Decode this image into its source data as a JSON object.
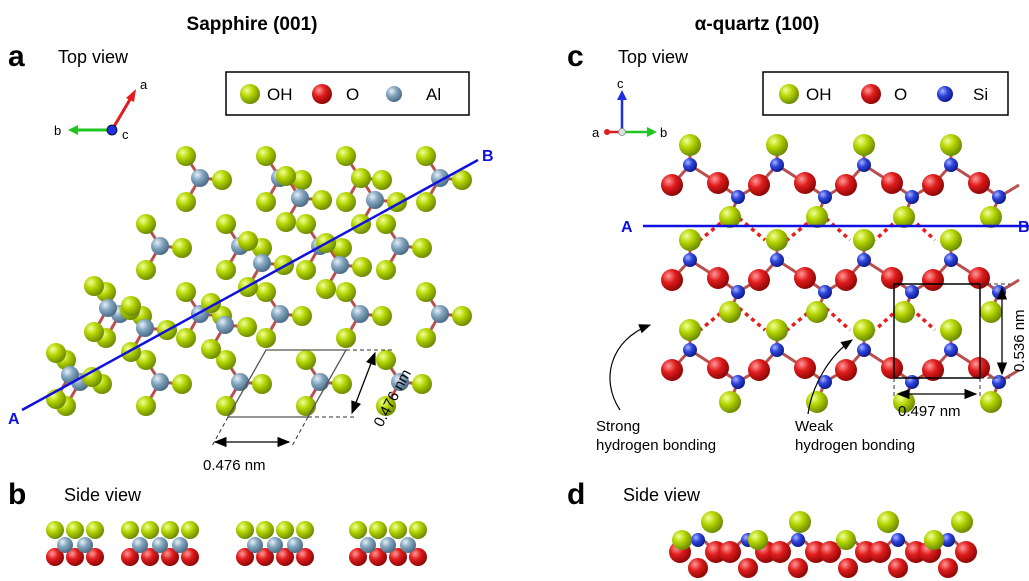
{
  "titles": {
    "left": "Sapphire (001)",
    "right": "α-quartz (100)"
  },
  "panels": {
    "a": "a",
    "b": "b",
    "c": "c",
    "d": "d"
  },
  "views": {
    "a": "Top view",
    "b": "Side view",
    "c": "Top view",
    "d": "Side view"
  },
  "legend_left": {
    "oh": "OH",
    "o": "O",
    "al": "Al"
  },
  "legend_right": {
    "oh": "OH",
    "o": "O",
    "si": "Si"
  },
  "axes_left": {
    "a": "a",
    "b": "b",
    "c": "c"
  },
  "axes_right": {
    "a": "a",
    "b": "b",
    "c": "c"
  },
  "lines": {
    "left_start": "A",
    "left_end": "B",
    "right_start": "A",
    "right_end": "B"
  },
  "dims": {
    "sapphire_1": "0.476 nm",
    "sapphire_2": "0.476 nm",
    "quartz_w": "0.497 nm",
    "quartz_h": "0.536 nm"
  },
  "annotations": {
    "strong_1": "Strong",
    "strong_2": "hydrogen bonding",
    "weak_1": "Weak",
    "weak_2": "hydrogen bonding"
  },
  "colors": {
    "oh": "#a6c800",
    "o": "#dd1a1a",
    "al": "#7c9db6",
    "si": "#2a3fd8",
    "line": "#1010e0",
    "hbond": "#e81c1c"
  }
}
